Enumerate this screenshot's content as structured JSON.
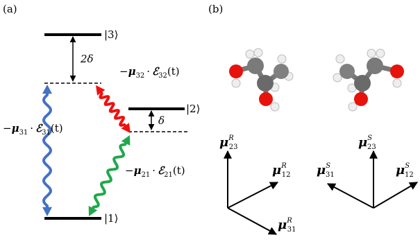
{
  "panel_a": {
    "label": "(a)",
    "levels": [
      {
        "ket": "|3⟩"
      },
      {
        "ket": "|2⟩"
      },
      {
        "ket": "|1⟩"
      }
    ],
    "splittings": [
      {
        "text": "2δ"
      },
      {
        "text": "δ"
      }
    ],
    "couplings": [
      {
        "minus": "−",
        "mu": "μ",
        "mu_sub": "32",
        "dot": "·",
        "eps": "ℰ",
        "eps_sub": "32",
        "arg": "(t)"
      },
      {
        "minus": "−",
        "mu": "μ",
        "mu_sub": "31",
        "dot": "·",
        "eps": "ℰ",
        "eps_sub": "31",
        "arg": "(t)"
      },
      {
        "minus": "−",
        "mu": "μ",
        "mu_sub": "21",
        "dot": "·",
        "eps": "ℰ",
        "eps_sub": "21",
        "arg": "(t)"
      }
    ]
  },
  "panel_b": {
    "label": "(b)",
    "vectors": [
      {
        "mu": "μ",
        "sub": "23",
        "sup": "R"
      },
      {
        "mu": "μ",
        "sub": "12",
        "sup": "R"
      },
      {
        "mu": "μ",
        "sub": "31",
        "sup": "R"
      },
      {
        "mu": "μ",
        "sub": "23",
        "sup": "S"
      },
      {
        "mu": "μ",
        "sub": "31",
        "sup": "S"
      },
      {
        "mu": "μ",
        "sub": "12",
        "sup": "S"
      }
    ]
  }
}
